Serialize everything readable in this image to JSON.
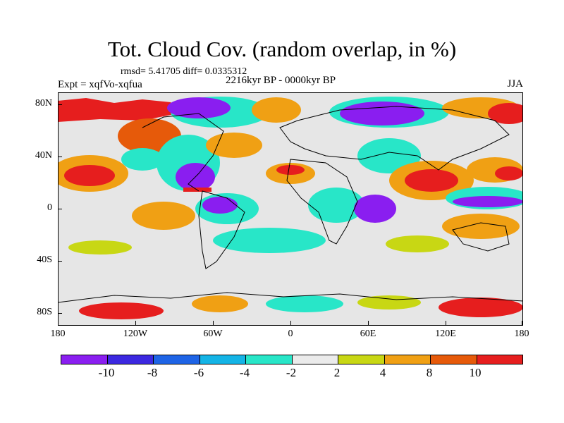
{
  "title": "Tot. Cloud Cov. (random overlap, in %)",
  "stats_line": "rmsd= 5.41705 diff= 0.0335312",
  "experiment": "Expt = xqfVo-xqfua",
  "period": "2216kyr BP - 0000kyr BP",
  "season": "JJA",
  "y_axis_labels": [
    "80N",
    "40N",
    "0",
    "40S",
    "80S"
  ],
  "x_axis_labels": [
    "180",
    "120W",
    "60W",
    "0",
    "60E",
    "120E",
    "180"
  ],
  "colorbar": {
    "labels": [
      "-10",
      "-8",
      "-6",
      "-4",
      "-2",
      "2",
      "4",
      "8",
      "10"
    ],
    "colors": [
      "#8a1ef0",
      "#3c28e0",
      "#1e64e6",
      "#14b4e6",
      "#28e6c8",
      "#ebebeb",
      "#c8d714",
      "#f0a014",
      "#e65a0a",
      "#e61e1e"
    ]
  }
}
